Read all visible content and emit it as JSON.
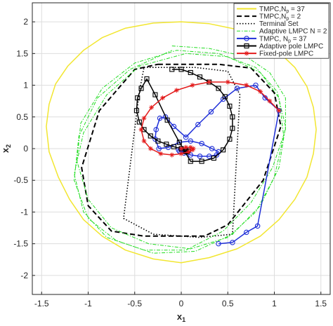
{
  "chart_data": {
    "type": "line",
    "title": "",
    "xlabel": "x",
    "xlabel_sub": "1",
    "ylabel": "x",
    "ylabel_sub": "2",
    "xlim": [
      -1.6,
      1.6
    ],
    "ylim": [
      -2.3,
      2.3
    ],
    "xticks": [
      -1.5,
      -1,
      -0.5,
      0,
      0.5,
      1,
      1.5
    ],
    "yticks": [
      -2,
      -1.5,
      -1,
      -0.5,
      0,
      0.5,
      1,
      1.5,
      2
    ],
    "xtick_labels": [
      "-1.5",
      "-1",
      "-0.5",
      "0",
      "0.5",
      "1",
      "1.5"
    ],
    "ytick_labels": [
      "-2",
      "-1.5",
      "-1",
      "-0.5",
      "0",
      "0.5",
      "1",
      "1.5",
      "2"
    ],
    "grid": true,
    "legend_position": "top-right",
    "series": [
      {
        "name": "TMPC,N_p = 37",
        "legend_label": "TMPC,N",
        "legend_sub": "p",
        "legend_suffix": " = 37",
        "color": "#f2e630",
        "style": "solid",
        "marker": "none",
        "closed": true,
        "x": [
          0.0,
          0.3,
          0.6,
          0.85,
          1.05,
          1.22,
          1.35,
          1.42,
          1.45,
          1.42,
          1.35,
          1.22,
          1.05,
          0.85,
          0.6,
          0.3,
          0.0,
          -0.3,
          -0.6,
          -0.85,
          -1.05,
          -1.2,
          -1.32,
          -1.42,
          -1.45,
          -1.42,
          -1.35,
          -1.22,
          -1.05,
          -0.85,
          -0.6,
          -0.3
        ],
        "y": [
          2.0,
          1.97,
          1.88,
          1.73,
          1.52,
          1.28,
          0.98,
          0.65,
          0.3,
          -0.08,
          -0.45,
          -0.8,
          -1.12,
          -1.38,
          -1.58,
          -1.72,
          -1.8,
          -1.74,
          -1.6,
          -1.38,
          -1.12,
          -0.8,
          -0.45,
          -0.05,
          0.35,
          0.7,
          1.02,
          1.3,
          1.55,
          1.75,
          1.9,
          1.98
        ]
      },
      {
        "name": "TMPC,N_p = 2",
        "legend_label": "TMPC,N",
        "legend_sub": "p",
        "legend_suffix": " = 2",
        "color": "#000000",
        "style": "dashed",
        "marker": "none",
        "closed": true,
        "x": [
          -0.25,
          0.4,
          0.75,
          1.0,
          1.07,
          0.88,
          0.5,
          0.25,
          -0.4,
          -0.75,
          -1.0,
          -1.07,
          -0.88,
          -0.5
        ],
        "y": [
          1.33,
          1.33,
          1.27,
          0.88,
          0.35,
          -0.5,
          -1.2,
          -1.38,
          -1.38,
          -1.3,
          -0.9,
          -0.3,
          0.6,
          1.25
        ]
      },
      {
        "name": "Terminal Set",
        "legend_label": "Terminal Set",
        "color": "#000000",
        "style": "dotted",
        "marker": "none",
        "closed": true,
        "x": [
          -0.4,
          0.15,
          0.5,
          0.63,
          0.55,
          0.2,
          -0.3,
          -0.62,
          -0.45
        ],
        "y": [
          1.28,
          1.28,
          1.22,
          0.85,
          -1.35,
          -1.4,
          -1.35,
          -1.1,
          0.9
        ]
      },
      {
        "name": "Adaptive LMPC N = 2",
        "legend_label": "Adaptive LMPC N = 2",
        "color": "#22dd22",
        "style": "dashdot",
        "marker": "none",
        "closed": false,
        "x": [
          -0.1,
          0.3,
          0.7,
          0.95,
          1.12,
          1.12,
          0.98,
          0.75,
          0.45,
          0.05,
          -0.4,
          -0.8,
          -1.05,
          -1.15,
          -1.05,
          -0.8,
          -0.45,
          0.05,
          0.5,
          0.85,
          1.05,
          1.1,
          1.0,
          0.8,
          0.5,
          0.1,
          -0.35,
          -0.75,
          -1.0,
          -1.12,
          -1.08,
          -0.85,
          -0.5,
          -0.05,
          0.4,
          0.8,
          1.03,
          1.12,
          1.05,
          0.85,
          0.55,
          0.15,
          -0.3,
          -0.7,
          -1.0,
          -1.15,
          -1.1,
          -0.9,
          -0.55,
          -0.1
        ],
        "y": [
          1.62,
          1.58,
          1.45,
          1.2,
          0.8,
          0.3,
          -0.3,
          -0.85,
          -1.3,
          -1.6,
          -1.6,
          -1.4,
          -1.0,
          -0.4,
          0.25,
          0.85,
          1.3,
          1.5,
          1.45,
          1.2,
          0.8,
          0.2,
          -0.45,
          -1.0,
          -1.4,
          -1.58,
          -1.5,
          -1.25,
          -0.8,
          -0.2,
          0.4,
          0.95,
          1.35,
          1.55,
          1.5,
          1.28,
          0.9,
          0.35,
          -0.3,
          -0.9,
          -1.35,
          -1.62,
          -1.65,
          -1.45,
          -1.1,
          -0.5,
          0.2,
          0.8,
          1.25,
          1.55
        ]
      },
      {
        "name": "TMPC, N_p = 37",
        "legend_label": "TMPC, N",
        "legend_sub": "p",
        "legend_suffix": " = 37",
        "color": "#1f2fd8",
        "style": "solid",
        "marker": "circle",
        "closed": false,
        "x": [
          0.4,
          0.55,
          0.7,
          0.82,
          1.05,
          0.9,
          0.8,
          0.6,
          0.45,
          0.32,
          0.18,
          0.05,
          -0.08,
          -0.17,
          -0.23,
          -0.27,
          -0.28,
          -0.24,
          -0.14,
          -0.02,
          0.1,
          0.22,
          0.33,
          0.4,
          0.38,
          0.3,
          0.2,
          0.1,
          0.03,
          -0.02,
          -0.03,
          0.0,
          0.03,
          0.05
        ],
        "y": [
          -1.5,
          -1.48,
          -1.32,
          -1.22,
          0.6,
          0.8,
          1.0,
          0.95,
          0.78,
          0.58,
          0.38,
          0.18,
          0.35,
          0.5,
          0.48,
          0.3,
          0.15,
          0.0,
          0.02,
          0.1,
          0.12,
          0.08,
          0.0,
          -0.05,
          -0.1,
          -0.12,
          -0.12,
          -0.1,
          -0.07,
          -0.04,
          -0.02,
          0.0,
          -0.02,
          -0.03
        ]
      },
      {
        "name": "Adaptive pole LMPC",
        "legend_label": "Adaptive pole LMPC",
        "color": "#000000",
        "style": "solid",
        "marker": "square",
        "closed": false,
        "x": [
          -0.1,
          0.0,
          0.1,
          0.2,
          0.3,
          0.4,
          0.47,
          0.52,
          0.55,
          0.55,
          0.52,
          0.45,
          0.35,
          0.22,
          0.1,
          -0.02,
          -0.15,
          -0.28,
          -0.37,
          -0.43,
          -0.47,
          -0.48,
          -0.45,
          -0.4,
          -0.33,
          -0.25,
          -0.16,
          -0.08,
          0.0,
          0.05,
          0.07,
          0.05
        ],
        "y": [
          1.25,
          1.25,
          1.2,
          1.13,
          1.05,
          0.95,
          0.82,
          0.67,
          0.5,
          0.32,
          0.15,
          -0.02,
          -0.15,
          -0.2,
          -0.2,
          0.1,
          0.45,
          0.85,
          1.1,
          0.95,
          0.8,
          0.6,
          0.42,
          0.3,
          0.2,
          0.12,
          0.07,
          0.03,
          0.0,
          -0.02,
          -0.04,
          -0.05
        ]
      },
      {
        "name": "Fixed-pole LMPC",
        "legend_label": "Fixed-pole LMPC",
        "color": "#e31b1b",
        "style": "solid",
        "marker": "asterisk",
        "closed": false,
        "x": [
          1.05,
          0.95,
          0.85,
          0.7,
          0.5,
          0.3,
          0.12,
          -0.05,
          -0.2,
          -0.32,
          -0.4,
          -0.43,
          -0.4,
          -0.33,
          -0.22,
          -0.1,
          0.0,
          0.08,
          0.12,
          0.13,
          0.1,
          0.05,
          0.0
        ],
        "y": [
          0.6,
          0.75,
          0.9,
          1.0,
          1.05,
          1.05,
          1.0,
          0.92,
          0.8,
          0.65,
          0.48,
          0.3,
          0.12,
          0.0,
          -0.08,
          -0.1,
          -0.08,
          -0.05,
          -0.02,
          0.0,
          0.02,
          0.02,
          0.0
        ]
      }
    ]
  }
}
